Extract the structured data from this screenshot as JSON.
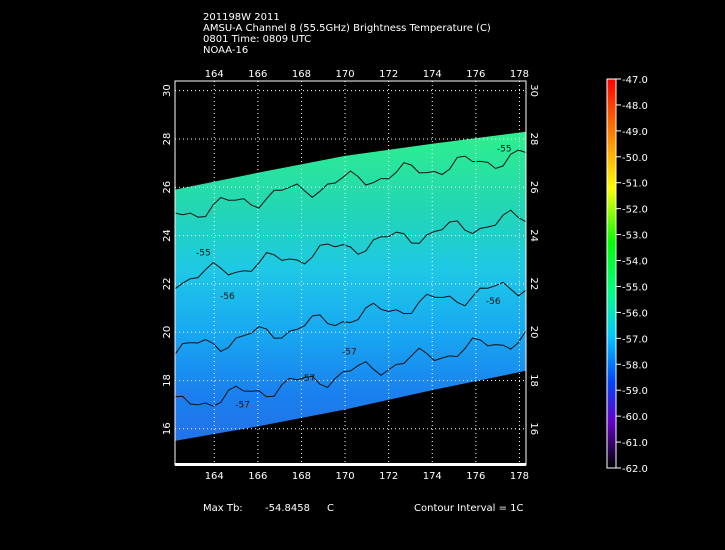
{
  "header": {
    "line1": "201198W 2011",
    "line2": "AMSU-A Channel 8 (55.5GHz) Brightness Temperature (C)",
    "line3": "0801 Time: 0809 UTC",
    "line4": "NOAA-16"
  },
  "footer": {
    "max_label": "Max Tb:",
    "max_value": "-54.8458",
    "max_unit": "C",
    "contour_label": "Contour Interval = 1C"
  },
  "chart_data": {
    "type": "heatmap",
    "x_ticks": [
      "164",
      "166",
      "168",
      "170",
      "172",
      "174",
      "176",
      "178"
    ],
    "y_ticks": [
      "16",
      "18",
      "20",
      "22",
      "24",
      "26",
      "28",
      "30"
    ],
    "xlim": [
      162.2,
      178.3
    ],
    "ylim": [
      14.5,
      30.4
    ],
    "grid": true,
    "swath_top": [
      [
        162.2,
        25.9
      ],
      [
        166,
        26.6
      ],
      [
        170,
        27.3
      ],
      [
        174,
        27.8
      ],
      [
        178.3,
        28.3
      ]
    ],
    "swath_bottom": [
      [
        162.2,
        15.5
      ],
      [
        166,
        16.1
      ],
      [
        170,
        16.8
      ],
      [
        174,
        17.6
      ],
      [
        178.3,
        18.4
      ]
    ],
    "contour_labels": [
      {
        "text": "-55",
        "x": 177.3,
        "y": 27.6
      },
      {
        "text": "-55",
        "x": 163.5,
        "y": 23.3
      },
      {
        "text": "-56",
        "x": 164.6,
        "y": 21.5
      },
      {
        "text": "-56",
        "x": 176.8,
        "y": 21.3
      },
      {
        "text": "-57",
        "x": 170.2,
        "y": 19.2
      },
      {
        "text": "-57",
        "x": 168.3,
        "y": 18.1
      },
      {
        "text": "-57",
        "x": 165.3,
        "y": 17.0
      }
    ],
    "colorbar": {
      "ticks": [
        "-47.0",
        "-48.0",
        "-49.0",
        "-50.0",
        "-51.0",
        "-52.0",
        "-53.0",
        "-54.0",
        "-55.0",
        "-56.0",
        "-57.0",
        "-58.0",
        "-59.0",
        "-60.0",
        "-61.0",
        "-62.0"
      ],
      "range": [
        -62,
        -47
      ]
    }
  }
}
